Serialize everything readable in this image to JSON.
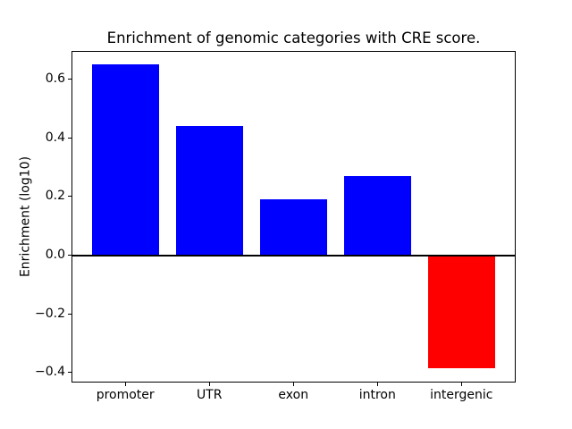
{
  "figure": {
    "background": "#ffffff",
    "text_color": "#000000"
  },
  "chart_data": {
    "type": "bar",
    "title": "Enrichment of genomic categories with CRE score.",
    "xlabel": "",
    "ylabel": "Enrichment (log10)",
    "categories": [
      "promoter",
      "UTR",
      "exon",
      "intron",
      "intergenic"
    ],
    "values": [
      0.65,
      0.44,
      0.19,
      0.27,
      -0.385
    ],
    "bar_width_fraction": 0.8,
    "positive_color": "#0000ff",
    "negative_color": "#ff0000",
    "axis_color": "#000000",
    "yticks": [
      0.6,
      0.4,
      0.2,
      0.0,
      -0.2,
      -0.4
    ],
    "ytick_labels": [
      "0.6",
      "0.4",
      "0.2",
      "0.0",
      "−0.2",
      "−0.4"
    ],
    "ylim": [
      -0.432,
      0.694
    ],
    "xlim": [
      -0.64,
      4.64
    ],
    "zero_line": true,
    "grid": false,
    "legend": null
  }
}
